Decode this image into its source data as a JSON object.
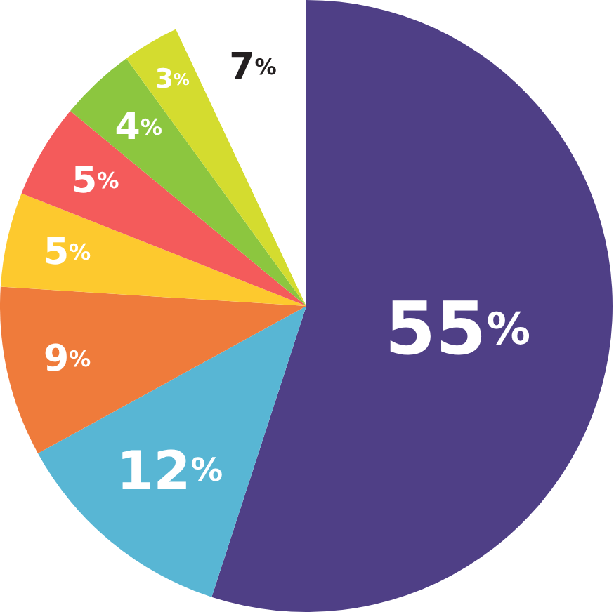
{
  "chart_data": {
    "type": "pie",
    "categories": [
      null,
      null,
      null,
      null,
      null,
      null,
      null,
      null
    ],
    "values": [
      55,
      12,
      9,
      5,
      5,
      4,
      3,
      7
    ],
    "colors": [
      "#4f3f86",
      "#58b6d4",
      "#ef7b3b",
      "#fdc92e",
      "#f45b5b",
      "#8cc63f",
      "#d4dc2f",
      "#ffffff"
    ],
    "value_labels": [
      "55%",
      "12%",
      "9%",
      "5%",
      "5%",
      "4%",
      "3%",
      "7%"
    ]
  }
}
